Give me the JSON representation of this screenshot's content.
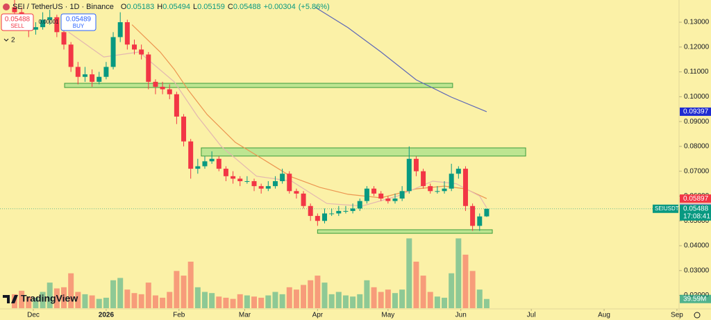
{
  "header": {
    "symbol": "SEI / TetherUS · 1D · Binance",
    "o": "O",
    "h": "H",
    "l": "L",
    "c": "C",
    "change": "+0.00304",
    "change_pct": "(+5.86%)",
    "sell": "SELL",
    "buy": "BUY",
    "buy_price": 0.05489,
    "spread": 1e-05,
    "indicators": 2,
    "ticker": "SEIUSDT",
    "countdown": "17:08:41",
    "logo": "TradingView"
  },
  "chart_data": {
    "type": "candlestick",
    "x": [
      -8,
      -5,
      -2,
      1,
      4,
      7,
      10,
      13,
      16,
      19,
      22,
      25,
      28,
      31,
      34,
      37,
      40,
      43,
      46,
      49,
      52,
      55,
      58,
      61,
      64,
      67,
      70,
      73,
      76,
      79,
      82,
      85,
      88,
      91,
      94,
      97,
      100,
      103,
      106,
      109,
      112,
      115,
      118,
      121,
      124,
      127,
      130,
      133,
      136,
      139,
      142,
      145,
      148,
      151,
      154,
      157,
      160,
      163,
      166,
      169,
      172,
      175,
      178,
      181,
      184,
      187,
      190,
      193
    ],
    "open": [
      0.136,
      0.134,
      0.13,
      0.127,
      0.128,
      0.131,
      0.132,
      0.126,
      0.121,
      0.112,
      0.108,
      0.109,
      0.106,
      0.108,
      0.112,
      0.124,
      0.13,
      0.121,
      0.119,
      0.117,
      0.106,
      0.104,
      0.103,
      0.101,
      0.092,
      0.082,
      0.071,
      0.072,
      0.074,
      0.075,
      0.071,
      0.068,
      0.067,
      0.066,
      0.066,
      0.064,
      0.063,
      0.064,
      0.066,
      0.069,
      0.062,
      0.061,
      0.056,
      0.052,
      0.05,
      0.053,
      0.053,
      0.054,
      0.054,
      0.055,
      0.058,
      0.063,
      0.061,
      0.059,
      0.058,
      0.059,
      0.062,
      0.075,
      0.07,
      0.064,
      0.062,
      0.062,
      0.063,
      0.069,
      0.071,
      0.056,
      0.048,
      0.05183
    ],
    "high": [
      0.139,
      0.136,
      0.132,
      0.13,
      0.134,
      0.135,
      0.133,
      0.127,
      0.122,
      0.114,
      0.112,
      0.111,
      0.11,
      0.114,
      0.126,
      0.134,
      0.131,
      0.123,
      0.121,
      0.118,
      0.107,
      0.106,
      0.105,
      0.102,
      0.093,
      0.083,
      0.075,
      0.076,
      0.078,
      0.076,
      0.072,
      0.07,
      0.068,
      0.068,
      0.067,
      0.065,
      0.066,
      0.068,
      0.071,
      0.07,
      0.063,
      0.062,
      0.057,
      0.053,
      0.055,
      0.055,
      0.056,
      0.056,
      0.057,
      0.059,
      0.064,
      0.064,
      0.062,
      0.06,
      0.061,
      0.064,
      0.08,
      0.076,
      0.071,
      0.065,
      0.064,
      0.066,
      0.073,
      0.072,
      0.072,
      0.057,
      0.053,
      0.05494
    ],
    "low": [
      0.131,
      0.127,
      0.124,
      0.125,
      0.127,
      0.129,
      0.124,
      0.119,
      0.11,
      0.105,
      0.106,
      0.104,
      0.105,
      0.107,
      0.111,
      0.122,
      0.119,
      0.117,
      0.115,
      0.103,
      0.101,
      0.101,
      0.099,
      0.089,
      0.08,
      0.067,
      0.069,
      0.071,
      0.073,
      0.07,
      0.066,
      0.065,
      0.064,
      0.065,
      0.062,
      0.061,
      0.062,
      0.063,
      0.065,
      0.061,
      0.059,
      0.055,
      0.05,
      0.048,
      0.049,
      0.052,
      0.052,
      0.053,
      0.053,
      0.054,
      0.057,
      0.06,
      0.058,
      0.057,
      0.057,
      0.058,
      0.061,
      0.068,
      0.063,
      0.061,
      0.061,
      0.061,
      0.062,
      0.067,
      0.054,
      0.046,
      0.046,
      0.05159
    ],
    "close": [
      0.134,
      0.13,
      0.127,
      0.128,
      0.131,
      0.132,
      0.126,
      0.121,
      0.112,
      0.108,
      0.109,
      0.106,
      0.108,
      0.112,
      0.124,
      0.13,
      0.121,
      0.119,
      0.117,
      0.106,
      0.104,
      0.103,
      0.101,
      0.092,
      0.082,
      0.071,
      0.072,
      0.074,
      0.075,
      0.071,
      0.068,
      0.067,
      0.066,
      0.066,
      0.064,
      0.063,
      0.064,
      0.066,
      0.069,
      0.062,
      0.061,
      0.056,
      0.052,
      0.05,
      0.053,
      0.053,
      0.054,
      0.054,
      0.055,
      0.058,
      0.063,
      0.061,
      0.059,
      0.058,
      0.059,
      0.062,
      0.075,
      0.07,
      0.064,
      0.062,
      0.062,
      0.063,
      0.069,
      0.071,
      0.056,
      0.048,
      0.0518,
      0.05488
    ],
    "volume": [
      60,
      75,
      50,
      45,
      70,
      110,
      85,
      90,
      150,
      70,
      60,
      55,
      40,
      45,
      120,
      130,
      80,
      65,
      60,
      110,
      55,
      45,
      70,
      160,
      140,
      200,
      90,
      70,
      65,
      50,
      45,
      40,
      60,
      55,
      50,
      45,
      55,
      70,
      60,
      90,
      80,
      100,
      120,
      140,
      110,
      60,
      70,
      55,
      50,
      60,
      120,
      90,
      70,
      80,
      65,
      80,
      300,
      200,
      140,
      70,
      50,
      45,
      150,
      300,
      230,
      160,
      80,
      39.59
    ],
    "volume_value_labels": {
      "67": "39.59M"
    },
    "volume_ylim": [
      0,
      340
    ],
    "up_color": "#089981",
    "down_color": "#f23645",
    "lines": [
      {
        "color": "#5c67b8",
        "label_color": "#1e2bd1",
        "x": [
          120,
          134,
          148,
          163,
          178,
          193
        ],
        "values": [
          0.136,
          0.1278,
          0.118,
          0.1068,
          0.0998,
          0.09397
        ]
      },
      {
        "color": "#ec9550",
        "label_color": "#f23645",
        "x": [
          42,
          54,
          60,
          66,
          74,
          86,
          98,
          110,
          122,
          134,
          148,
          163,
          175,
          184,
          193
        ],
        "values": [
          0.129,
          0.118,
          0.111,
          0.1026,
          0.0928,
          0.0816,
          0.0747,
          0.0677,
          0.0635,
          0.0607,
          0.0593,
          0.0629,
          0.064,
          0.0629,
          0.05897
        ]
      },
      {
        "color": "#e3b7b0",
        "label_color": "#c98fd8",
        "x": [
          15,
          30,
          45,
          60,
          70,
          80,
          95,
          110,
          125,
          140,
          155,
          170,
          180,
          190,
          193
        ],
        "values": [
          0.126,
          0.116,
          0.118,
          0.106,
          0.092,
          0.08,
          0.068,
          0.066,
          0.057,
          0.056,
          0.06,
          0.066,
          0.065,
          0.06,
          0.05528
        ]
      }
    ],
    "zones": [
      {
        "x0": 13.3,
        "x1": 178.5,
        "y0": 0.1037,
        "y1": 0.1054
      },
      {
        "x0": 71.5,
        "x1": 209.6,
        "y0": 0.0761,
        "y1": 0.0794
      },
      {
        "x0": 121,
        "x1": 195.4,
        "y0": 0.045,
        "y1": 0.04644
      }
    ],
    "zone_color": "#a8e08a",
    "xlim": [
      -14.2,
      275.5
    ],
    "ylim": [
      0.01485,
      0.13894
    ],
    "xticks": [
      {
        "value": 0,
        "label": "Dec"
      },
      {
        "value": 31,
        "label": "2026"
      },
      {
        "value": 62,
        "label": "Feb"
      },
      {
        "value": 90,
        "label": "Mar"
      },
      {
        "value": 121,
        "label": "Apr"
      },
      {
        "value": 151,
        "label": "May"
      },
      {
        "value": 182,
        "label": "Jun"
      },
      {
        "value": 212,
        "label": "Jul"
      },
      {
        "value": 243,
        "label": "Aug"
      },
      {
        "value": 274,
        "label": "Sep"
      }
    ],
    "yticks": [
      {
        "value": 0.13,
        "label": "0.13000"
      },
      {
        "value": 0.12,
        "label": "0.12000"
      },
      {
        "value": 0.11,
        "label": "0.11000"
      },
      {
        "value": 0.1,
        "label": "0.10000"
      },
      {
        "value": 0.09,
        "label": "0.09000"
      },
      {
        "value": 0.08,
        "label": "0.08000"
      },
      {
        "value": 0.07,
        "label": "0.07000"
      },
      {
        "value": 0.06,
        "label": "0.06000"
      },
      {
        "value": 0.05,
        "label": "0.05000"
      },
      {
        "value": 0.04,
        "label": "0.04000"
      },
      {
        "value": 0.03,
        "label": "0.03000"
      },
      {
        "value": 0.02,
        "label": "0.02000"
      }
    ],
    "grid": false
  }
}
